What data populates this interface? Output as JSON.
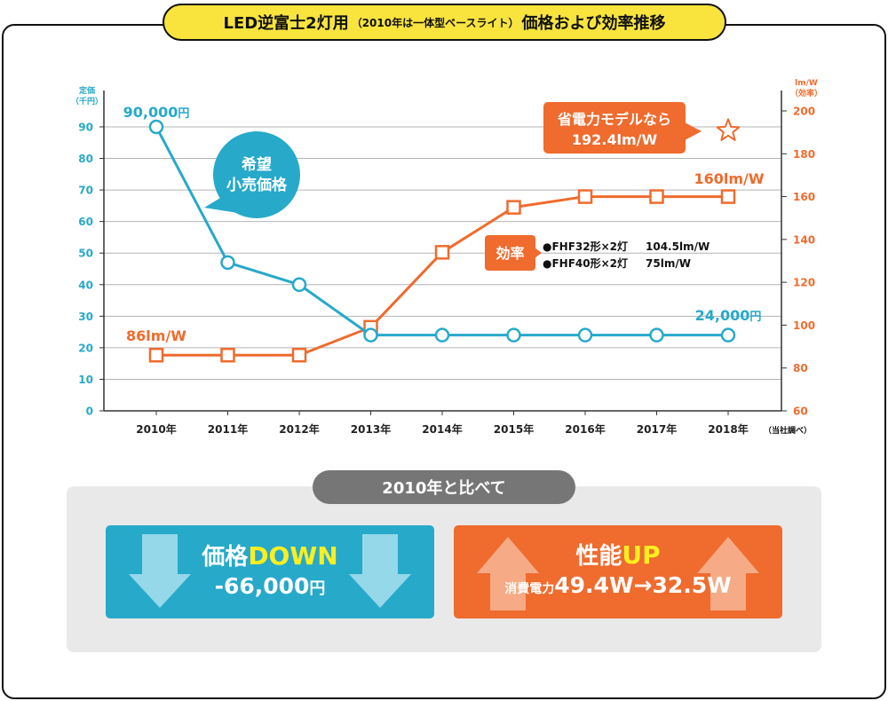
{
  "title": {
    "main": "LED逆富士2灯用",
    "sub": "（2010年は一体型ベースライト）",
    "tail": "価格および効率推移"
  },
  "colors": {
    "price": "#27a9ca",
    "efficiency": "#ef6b2e",
    "title_bg": "#f8e43d",
    "highlight_text": "#fcee21",
    "panel_bg": "#e9e9e9",
    "heading_pill": "#767676"
  },
  "chart_data": {
    "type": "line",
    "x": [
      "2010年",
      "2011年",
      "2012年",
      "2013年",
      "2014年",
      "2015年",
      "2016年",
      "2017年",
      "2018年"
    ],
    "y_left": {
      "label": [
        "定価",
        "（千円）"
      ],
      "ticks": [
        0,
        10,
        20,
        30,
        40,
        50,
        60,
        70,
        80,
        90
      ],
      "ylim": [
        0,
        100
      ]
    },
    "y_right": {
      "label": [
        "lm/W",
        "（効率）"
      ],
      "ticks": [
        60,
        80,
        100,
        120,
        140,
        160,
        180,
        200
      ],
      "ylim": [
        60,
        200
      ]
    },
    "grid": true,
    "series": [
      {
        "name_lines": [
          "希望",
          "小売価格"
        ],
        "axis": "left",
        "marker": "circle",
        "color": "#27a9ca",
        "values": [
          90,
          47,
          40,
          24,
          24,
          24,
          24,
          24,
          24
        ]
      },
      {
        "name": "効率",
        "axis": "right",
        "marker": "square",
        "color": "#ef6b2e",
        "values": [
          86,
          86,
          86,
          99,
          134,
          155,
          160,
          160,
          160
        ]
      }
    ],
    "annotations": {
      "price_start": {
        "value": "90,000",
        "unit": "円"
      },
      "price_end": {
        "value": "24,000",
        "unit": "円"
      },
      "eff_start": "86lm/W",
      "eff_end": "160lm/W",
      "efficiency_notes": [
        {
          "lamp": "●FHF32形×2灯",
          "value": "104.5lm/W"
        },
        {
          "lamp": "●FHF40形×2灯",
          "value": "75lm/W"
        }
      ],
      "highlight": {
        "lines": [
          "省電力モデルなら",
          "192.4lm/W"
        ],
        "x": "2018年",
        "value": 192.4,
        "marker": "star-icon"
      },
      "source": "（当社調べ）"
    }
  },
  "comparison": {
    "heading": "2010年と比べて",
    "price": {
      "label": "価格",
      "emph": "DOWN",
      "value": "-66,000",
      "unit": "円"
    },
    "performance": {
      "label": "性能",
      "emph": "UP",
      "sub_label": "消費電力",
      "value": "49.4W→32.5W"
    }
  }
}
